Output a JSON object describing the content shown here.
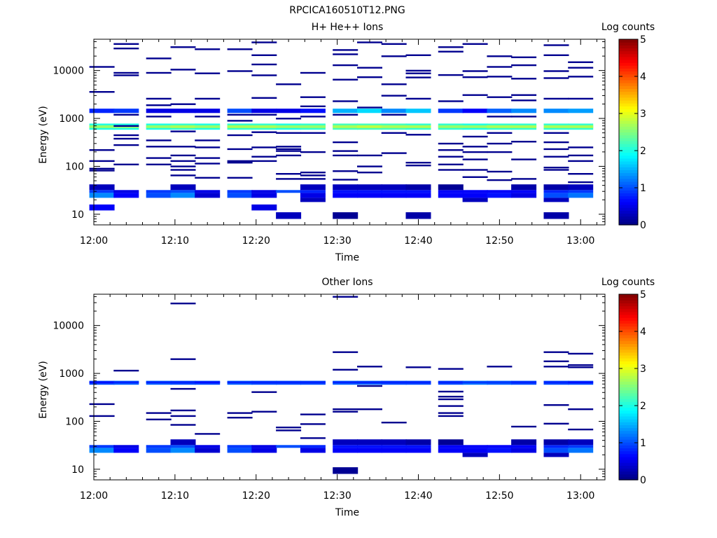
{
  "figure_title": "RPCICA160510T12.PNG",
  "colorbar": {
    "label": "Log counts",
    "ticks": [
      "0",
      "1",
      "2",
      "3",
      "4",
      "5"
    ],
    "range": [
      0,
      5
    ],
    "colormap": "jet"
  },
  "chart_data": [
    {
      "type": "heatmap",
      "title": "H+ He++ Ions",
      "xlabel": "Time",
      "ylabel": "Energy (eV)",
      "x_ticks": [
        "12:00",
        "12:10",
        "12:20",
        "12:30",
        "12:40",
        "12:50",
        "13:00"
      ],
      "y_ticks": [
        "10",
        "100",
        "1000",
        "10000"
      ],
      "y_scale": "log",
      "ylim": [
        6,
        45000
      ],
      "time_range": [
        "12:00",
        "13:03"
      ],
      "time_bins": [
        "12:01",
        "12:04",
        "12:08",
        "12:11",
        "12:14",
        "12:18",
        "12:21",
        "12:24",
        "12:27",
        "12:31",
        "12:34",
        "12:37",
        "12:40",
        "12:44",
        "12:47",
        "12:50",
        "12:53",
        "12:57",
        "13:00"
      ],
      "bands": [
        {
          "emin": 580,
          "emax": 780,
          "levels": [
            2.0,
            2.0,
            2.0,
            2.1,
            2.0,
            2.1,
            2.1,
            2.0,
            2.1,
            2.2,
            2.2,
            2.2,
            2.1,
            2.1,
            2.0,
            2.1,
            2.1,
            2.1,
            2.1
          ]
        },
        {
          "emin": 630,
          "emax": 720,
          "levels": [
            2.6,
            2.6,
            2.6,
            2.7,
            2.6,
            2.7,
            2.7,
            2.6,
            2.6,
            2.7,
            2.8,
            2.7,
            2.7,
            2.6,
            2.6,
            2.7,
            2.7,
            2.7,
            2.7
          ]
        },
        {
          "emin": 1300,
          "emax": 1600,
          "levels": [
            0.8,
            0.9,
            0.5,
            0.5,
            0.5,
            1.0,
            0.5,
            0.5,
            0.7,
            1.5,
            1.7,
            1.3,
            1.6,
            0.9,
            0.6,
            1.1,
            1.3,
            1.3,
            1.4
          ]
        },
        {
          "emin": 22,
          "emax": 28,
          "levels": [
            1.3,
            0.6,
            1.0,
            1.3,
            0.4,
            1.0,
            0.5,
            0,
            0.5,
            0.6,
            0.6,
            0.6,
            0.6,
            0.6,
            0.6,
            0.7,
            0.5,
            1.0,
            1.2
          ]
        },
        {
          "emin": 28,
          "emax": 32,
          "levels": [
            0.9,
            0.5,
            0.9,
            1.0,
            0.5,
            0.9,
            0.5,
            1.0,
            0.8,
            0.7,
            0.7,
            0.7,
            0.7,
            0.6,
            0.6,
            0.6,
            0.6,
            0.8,
            0.9
          ]
        },
        {
          "emin": 32,
          "emax": 42,
          "levels": [
            0.3,
            0,
            0,
            0.3,
            0,
            0,
            0,
            0,
            0.3,
            0.3,
            0.3,
            0.3,
            0.2,
            0.1,
            0,
            0,
            0.2,
            0.2,
            0.3
          ]
        },
        {
          "emin": 18,
          "emax": 22,
          "levels": [
            0,
            0,
            0,
            0,
            0,
            0,
            0,
            0,
            0.3,
            0,
            0,
            0,
            0,
            0,
            0.3,
            0,
            0,
            0.3,
            0
          ]
        },
        {
          "emin": 12,
          "emax": 16,
          "levels": [
            0.6,
            0,
            0,
            0,
            0,
            0,
            0.5,
            0,
            0,
            0,
            0,
            0,
            0,
            0,
            0,
            0,
            0,
            0,
            0
          ]
        },
        {
          "emin": 8,
          "emax": 11,
          "levels": [
            0,
            0,
            0,
            0,
            0,
            0,
            0,
            0.3,
            0,
            0.1,
            0,
            0,
            0.2,
            0,
            0,
            0,
            0,
            0.2,
            0
          ]
        }
      ],
      "sparse_lines": [
        [
          12000,
          3600,
          220,
          130,
          90,
          82
        ],
        [
          36000,
          29000,
          9000,
          8000,
          1200,
          700,
          450,
          380,
          280,
          110
        ],
        [
          18000,
          9000,
          2600,
          1900,
          1100,
          350,
          260,
          150,
          110
        ],
        [
          31000,
          10500,
          2000,
          540,
          260,
          170,
          130,
          100,
          85,
          65
        ],
        [
          28000,
          8800,
          2600,
          1100,
          350,
          250,
          150,
          115,
          58
        ],
        [
          28000,
          9800,
          1200,
          900,
          450,
          230,
          130,
          120,
          58
        ],
        [
          39000,
          21000,
          13500,
          8000,
          2700,
          1200,
          520,
          250,
          160,
          130
        ],
        [
          5200,
          1000,
          500,
          260,
          230,
          210,
          170,
          70,
          55
        ],
        [
          9000,
          2800,
          1800,
          1100,
          500,
          200,
          75,
          65,
          55
        ],
        [
          27000,
          22000,
          13000,
          6500,
          2300,
          1200,
          320,
          210,
          170,
          80,
          53
        ],
        [
          39000,
          11500,
          7300,
          1700,
          170,
          100,
          75
        ],
        [
          36000,
          20000,
          5200,
          3000,
          1200,
          500,
          190
        ],
        [
          21000,
          10000,
          8800,
          7200,
          2600,
          460,
          120,
          105
        ],
        [
          31000,
          25000,
          8100,
          2300,
          300,
          220,
          160,
          110,
          85
        ],
        [
          36000,
          9800,
          7300,
          3100,
          420,
          260,
          200,
          140,
          85,
          60
        ],
        [
          20000,
          12000,
          7500,
          2800,
          1100,
          500,
          300,
          200,
          78,
          52
        ],
        [
          19000,
          13000,
          6800,
          3100,
          2400,
          1100,
          330,
          140,
          55
        ],
        [
          34000,
          21000,
          9800,
          7000,
          2600,
          500,
          320,
          230,
          160,
          95,
          85
        ],
        [
          15000,
          11500,
          7500,
          2600,
          250,
          170,
          130,
          70,
          47
        ]
      ]
    },
    {
      "type": "heatmap",
      "title": "Other Ions",
      "xlabel": "Time",
      "ylabel": "Energy (eV)",
      "x_ticks": [
        "12:00",
        "12:10",
        "12:20",
        "12:30",
        "12:40",
        "12:50",
        "13:00"
      ],
      "y_ticks": [
        "10",
        "100",
        "1000",
        "10000"
      ],
      "y_scale": "log",
      "ylim": [
        6,
        45000
      ],
      "time_range": [
        "12:00",
        "13:03"
      ],
      "time_bins": [
        "12:01",
        "12:04",
        "12:08",
        "12:11",
        "12:14",
        "12:18",
        "12:21",
        "12:24",
        "12:27",
        "12:31",
        "12:34",
        "12:37",
        "12:40",
        "12:44",
        "12:47",
        "12:50",
        "12:53",
        "12:57",
        "13:00"
      ],
      "bands": [
        {
          "emin": 580,
          "emax": 700,
          "levels": [
            1.0,
            1.1,
            1.1,
            1.0,
            1.0,
            1.1,
            1.0,
            1.0,
            1.0,
            1.1,
            1.1,
            1.0,
            1.0,
            1.0,
            1.2,
            1.1,
            1.0,
            1.0,
            1.0
          ]
        },
        {
          "emin": 620,
          "emax": 680,
          "levels": [
            0.7,
            0.8,
            0.8,
            0.8,
            0.7,
            0.8,
            0.8,
            0.8,
            0.8,
            0.8,
            0.8,
            0.8,
            0.8,
            0.8,
            0.9,
            0.9,
            0.8,
            0.8,
            0.7
          ]
        },
        {
          "emin": 22,
          "emax": 28,
          "levels": [
            1.3,
            0.6,
            1.0,
            1.3,
            0.4,
            1.0,
            0.5,
            0,
            0.5,
            0.6,
            0.6,
            0.6,
            0.6,
            0.6,
            0.6,
            0.7,
            0.5,
            1.0,
            1.2
          ]
        },
        {
          "emin": 28,
          "emax": 32,
          "levels": [
            0.9,
            0.5,
            0.9,
            1.0,
            0.5,
            0.9,
            0.5,
            1.0,
            0.8,
            0.7,
            0.7,
            0.7,
            0.7,
            0.6,
            0.6,
            0.6,
            0.6,
            0.8,
            0.9
          ]
        },
        {
          "emin": 32,
          "emax": 42,
          "levels": [
            0,
            0,
            0,
            0.3,
            0,
            0,
            0,
            0,
            0,
            0.3,
            0.3,
            0.3,
            0.2,
            0.1,
            0,
            0,
            0.2,
            0.2,
            0.3
          ]
        },
        {
          "emin": 18,
          "emax": 22,
          "levels": [
            0,
            0,
            0,
            0,
            0,
            0,
            0,
            0,
            0,
            0,
            0,
            0,
            0,
            0,
            0.3,
            0,
            0,
            0.3,
            0
          ]
        },
        {
          "emin": 8,
          "emax": 11,
          "levels": [
            0,
            0,
            0,
            0,
            0,
            0,
            0,
            0,
            0,
            0.1,
            0,
            0,
            0,
            0,
            0,
            0,
            0,
            0,
            0
          ]
        }
      ],
      "sparse_lines": [
        [
          230,
          130
        ],
        [
          1150
        ],
        [
          150,
          110
        ],
        [
          29000,
          2000,
          480,
          170,
          130,
          85
        ],
        [
          55
        ],
        [
          150,
          120
        ],
        [
          410,
          160
        ],
        [
          75,
          65
        ],
        [
          140,
          88,
          45
        ],
        [
          40000,
          2800,
          1200,
          180,
          160
        ],
        [
          1400,
          550,
          180
        ],
        [
          95
        ],
        [
          1350
        ],
        [
          1250,
          420,
          330,
          290,
          210,
          150,
          130
        ],
        [],
        [
          1400
        ],
        [
          78
        ],
        [
          2800,
          1800,
          1400,
          220,
          90
        ],
        [
          2600,
          1500,
          1350,
          180,
          68
        ]
      ]
    }
  ]
}
